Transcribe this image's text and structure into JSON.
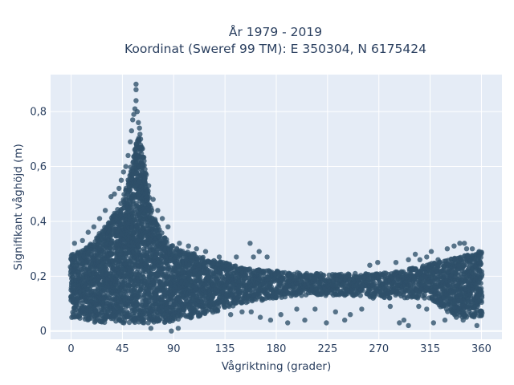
{
  "chart_data": {
    "type": "scatter",
    "title_lines": [
      "År 1979 - 2019",
      "Koordinat (Sweref 99 TM): E 350304, N 6175424"
    ],
    "xlabel": "Vågriktning (grader)",
    "ylabel": "Signifikant våghöjd (m)",
    "xlim": [
      -18,
      378
    ],
    "ylim": [
      -0.03,
      0.935
    ],
    "xticks": [
      0,
      45,
      90,
      135,
      180,
      225,
      270,
      315,
      360
    ],
    "xtick_labels": [
      "0",
      "45",
      "90",
      "135",
      "180",
      "225",
      "270",
      "315",
      "360"
    ],
    "yticks": [
      0,
      0.2,
      0.4,
      0.6,
      0.8
    ],
    "ytick_labels": [
      "0",
      "0,2",
      "0,4",
      "0,6",
      "0,8"
    ],
    "grid": true,
    "background_color": "#e5ecf6",
    "marker_color": "#2e5069",
    "series": [
      {
        "envelope": {
          "x": [
            0,
            10,
            20,
            30,
            40,
            45,
            50,
            54,
            57,
            60,
            63,
            66,
            70,
            80,
            90,
            100,
            110,
            120,
            135,
            150,
            180,
            210,
            240,
            270,
            290,
            300,
            310,
            320,
            330,
            340,
            350,
            360
          ],
          "low": [
            0.05,
            0.04,
            0.03,
            0.03,
            0.03,
            0.03,
            0.03,
            0.03,
            0.03,
            0.03,
            0.03,
            0.03,
            0.03,
            0.03,
            0.03,
            0.04,
            0.05,
            0.06,
            0.08,
            0.1,
            0.12,
            0.13,
            0.13,
            0.12,
            0.12,
            0.12,
            0.12,
            0.1,
            0.07,
            0.05,
            0.05,
            0.05
          ],
          "high": [
            0.28,
            0.3,
            0.33,
            0.38,
            0.44,
            0.48,
            0.55,
            0.62,
            0.68,
            0.72,
            0.66,
            0.55,
            0.45,
            0.35,
            0.31,
            0.29,
            0.28,
            0.26,
            0.25,
            0.23,
            0.22,
            0.21,
            0.21,
            0.21,
            0.22,
            0.23,
            0.24,
            0.25,
            0.26,
            0.27,
            0.28,
            0.29
          ]
        },
        "outliers": [
          {
            "x": 57,
            "y": 0.9
          },
          {
            "x": 57,
            "y": 0.88
          },
          {
            "x": 57,
            "y": 0.84
          },
          {
            "x": 56,
            "y": 0.81
          },
          {
            "x": 55,
            "y": 0.79
          },
          {
            "x": 58,
            "y": 0.8
          },
          {
            "x": 54,
            "y": 0.77
          },
          {
            "x": 59,
            "y": 0.76
          },
          {
            "x": 53,
            "y": 0.73
          },
          {
            "x": 60,
            "y": 0.74
          },
          {
            "x": 52,
            "y": 0.69
          },
          {
            "x": 61,
            "y": 0.7
          },
          {
            "x": 50,
            "y": 0.64
          },
          {
            "x": 62,
            "y": 0.67
          },
          {
            "x": 48,
            "y": 0.6
          },
          {
            "x": 64,
            "y": 0.62
          },
          {
            "x": 46,
            "y": 0.58
          },
          {
            "x": 66,
            "y": 0.57
          },
          {
            "x": 44,
            "y": 0.55
          },
          {
            "x": 68,
            "y": 0.53
          },
          {
            "x": 42,
            "y": 0.52
          },
          {
            "x": 38,
            "y": 0.5
          },
          {
            "x": 35,
            "y": 0.49
          },
          {
            "x": 72,
            "y": 0.48
          },
          {
            "x": 76,
            "y": 0.44
          },
          {
            "x": 80,
            "y": 0.41
          },
          {
            "x": 30,
            "y": 0.44
          },
          {
            "x": 25,
            "y": 0.41
          },
          {
            "x": 20,
            "y": 0.38
          },
          {
            "x": 15,
            "y": 0.36
          },
          {
            "x": 10,
            "y": 0.33
          },
          {
            "x": 3,
            "y": 0.32
          },
          {
            "x": 85,
            "y": 0.38
          },
          {
            "x": 95,
            "y": 0.32
          },
          {
            "x": 103,
            "y": 0.31
          },
          {
            "x": 110,
            "y": 0.3
          },
          {
            "x": 118,
            "y": 0.29
          },
          {
            "x": 88,
            "y": 0.0
          },
          {
            "x": 94,
            "y": 0.01
          },
          {
            "x": 70,
            "y": 0.01
          },
          {
            "x": 130,
            "y": 0.27
          },
          {
            "x": 145,
            "y": 0.27
          },
          {
            "x": 157,
            "y": 0.32
          },
          {
            "x": 165,
            "y": 0.29
          },
          {
            "x": 160,
            "y": 0.27
          },
          {
            "x": 172,
            "y": 0.27
          },
          {
            "x": 140,
            "y": 0.06
          },
          {
            "x": 150,
            "y": 0.07
          },
          {
            "x": 158,
            "y": 0.07
          },
          {
            "x": 166,
            "y": 0.05
          },
          {
            "x": 175,
            "y": 0.04
          },
          {
            "x": 184,
            "y": 0.06
          },
          {
            "x": 190,
            "y": 0.03
          },
          {
            "x": 198,
            "y": 0.08
          },
          {
            "x": 205,
            "y": 0.04
          },
          {
            "x": 214,
            "y": 0.08
          },
          {
            "x": 224,
            "y": 0.03
          },
          {
            "x": 232,
            "y": 0.07
          },
          {
            "x": 245,
            "y": 0.06
          },
          {
            "x": 240,
            "y": 0.04
          },
          {
            "x": 255,
            "y": 0.08
          },
          {
            "x": 265,
            "y": 0.12
          },
          {
            "x": 262,
            "y": 0.24
          },
          {
            "x": 269,
            "y": 0.25
          },
          {
            "x": 280,
            "y": 0.09
          },
          {
            "x": 288,
            "y": 0.03
          },
          {
            "x": 292,
            "y": 0.04
          },
          {
            "x": 296,
            "y": 0.02
          },
          {
            "x": 285,
            "y": 0.25
          },
          {
            "x": 296,
            "y": 0.26
          },
          {
            "x": 302,
            "y": 0.28
          },
          {
            "x": 306,
            "y": 0.26
          },
          {
            "x": 312,
            "y": 0.27
          },
          {
            "x": 316,
            "y": 0.29
          },
          {
            "x": 322,
            "y": 0.26
          },
          {
            "x": 330,
            "y": 0.3
          },
          {
            "x": 336,
            "y": 0.31
          },
          {
            "x": 341,
            "y": 0.32
          },
          {
            "x": 347,
            "y": 0.3
          },
          {
            "x": 345,
            "y": 0.32
          },
          {
            "x": 352,
            "y": 0.3
          },
          {
            "x": 358,
            "y": 0.29
          },
          {
            "x": 305,
            "y": 0.09
          },
          {
            "x": 312,
            "y": 0.08
          },
          {
            "x": 318,
            "y": 0.03
          },
          {
            "x": 328,
            "y": 0.04
          },
          {
            "x": 338,
            "y": 0.05
          },
          {
            "x": 344,
            "y": 0.04
          },
          {
            "x": 350,
            "y": 0.06
          },
          {
            "x": 356,
            "y": 0.02
          }
        ]
      }
    ]
  }
}
